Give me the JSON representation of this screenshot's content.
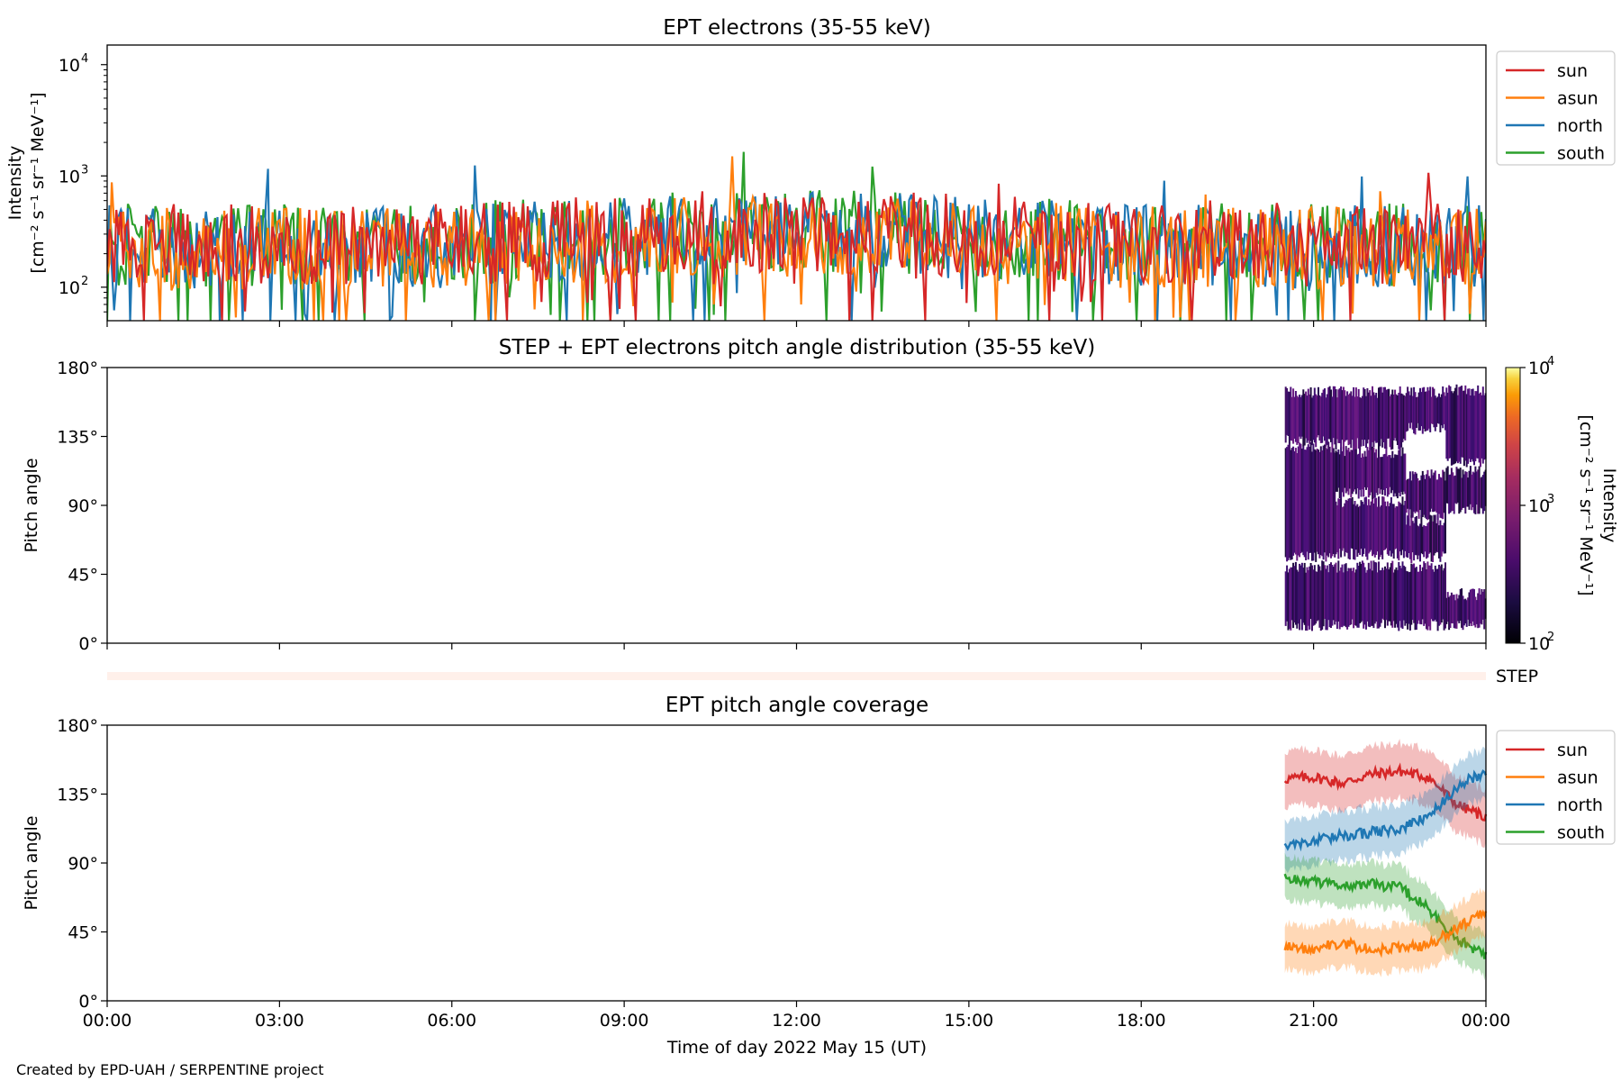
{
  "footer": "Created by EPD-UAH / SERPENTINE project",
  "xlabel": "Time of day 2022 May 15 (UT)",
  "xticks": [
    "00:00",
    "03:00",
    "06:00",
    "09:00",
    "12:00",
    "15:00",
    "18:00",
    "21:00",
    "00:00"
  ],
  "colors": {
    "sun": "#d62728",
    "asun": "#ff7f0e",
    "north": "#1f77b4",
    "south": "#2ca02c"
  },
  "chart_data": [
    {
      "type": "line",
      "title": "EPT electrons (35-55 keV)",
      "ylabel_line1": "Intensity",
      "ylabel_line2": "[cm⁻² s⁻¹ sr⁻¹ MeV⁻¹]",
      "yscale": "log",
      "ylim": [
        50,
        15000
      ],
      "yticks": [
        100,
        1000,
        10000
      ],
      "ytick_labels": [
        "10",
        "10",
        "10"
      ],
      "ytick_exponents": [
        "2",
        "3",
        "4"
      ],
      "xlim_hours": [
        0,
        24
      ],
      "legend_position": "outside-right",
      "series": [
        {
          "name": "sun",
          "typical": 240,
          "note": "5-min intensity, fluctuating ~100–600"
        },
        {
          "name": "asun",
          "typical": 220
        },
        {
          "name": "north",
          "typical": 230
        },
        {
          "name": "south",
          "typical": 240
        }
      ]
    },
    {
      "type": "heatmap",
      "title": "STEP + EPT electrons pitch angle distribution (35-55 keV)",
      "ylabel": "Pitch angle",
      "ylim": [
        0,
        180
      ],
      "yticks": [
        "0°",
        "45°",
        "90°",
        "135°",
        "180°"
      ],
      "data_coverage_hours": [
        20.5,
        24
      ],
      "colorbar": {
        "label_line1": "Intensity",
        "label_line2": "[cm⁻² s⁻¹ sr⁻¹ MeV⁻¹]",
        "range": [
          100,
          10000
        ],
        "scale": "log",
        "ticks": [
          "10",
          "10",
          "10"
        ],
        "tick_exponents": [
          "2",
          "3",
          "4"
        ]
      }
    },
    {
      "type": "strip",
      "label": "STEP"
    },
    {
      "type": "line",
      "title": "EPT pitch angle coverage",
      "ylabel": "Pitch angle",
      "ylim": [
        0,
        180
      ],
      "yticks": [
        "0°",
        "45°",
        "90°",
        "135°",
        "180°"
      ],
      "legend_position": "outside-right",
      "x_hours": [
        20.5,
        21.0,
        21.5,
        22.0,
        22.5,
        23.0,
        23.5,
        24.0
      ],
      "series": [
        {
          "name": "sun",
          "values": [
            145,
            146,
            142,
            148,
            150,
            146,
            128,
            120
          ],
          "band": 18
        },
        {
          "name": "asun",
          "values": [
            35,
            34,
            38,
            33,
            35,
            36,
            48,
            58
          ],
          "band": 15
        },
        {
          "name": "north",
          "values": [
            102,
            104,
            108,
            110,
            112,
            120,
            140,
            150
          ],
          "band": 16
        },
        {
          "name": "south",
          "values": [
            80,
            78,
            75,
            76,
            74,
            60,
            40,
            30
          ],
          "band": 14
        }
      ]
    }
  ]
}
